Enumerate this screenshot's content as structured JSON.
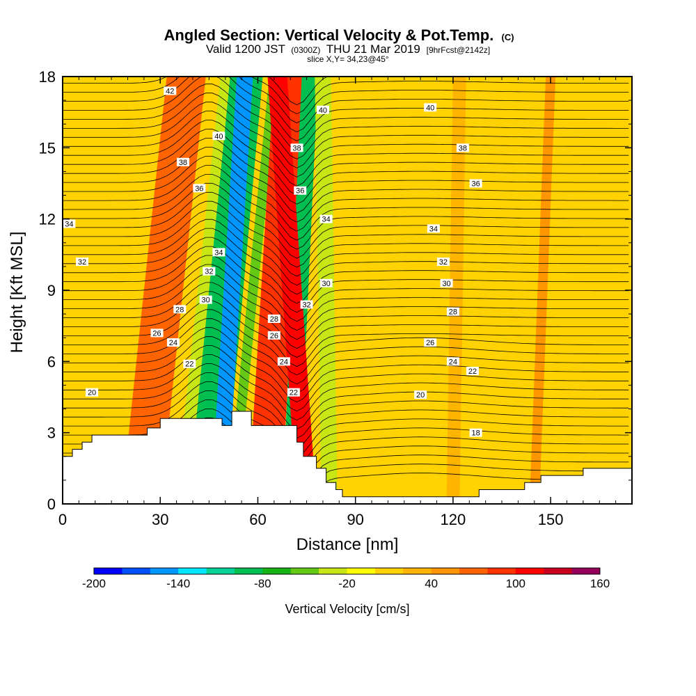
{
  "chart_data": {
    "type": "contour",
    "title": "Angled Section: Vertical Velocity & Pot.Temp.",
    "title_unit": "(C)",
    "subtitle_main": "Valid 1200 JST",
    "subtitle_utc": "(0300Z)",
    "subtitle_date": "THU 21 Mar 2019",
    "subtitle_fcst": "[9hrFcst@2142z]",
    "subtitle_slice": "slice X,Y= 34,23@45°",
    "xlabel": "Distance [nm]",
    "ylabel": "Height [Kft MSL]",
    "xlim": [
      0,
      175
    ],
    "ylim": [
      0,
      18
    ],
    "x_ticks": [
      0,
      30,
      60,
      90,
      120,
      150
    ],
    "y_ticks": [
      0,
      3,
      6,
      9,
      12,
      15,
      18
    ],
    "colorbar": {
      "label": "Vertical Velocity [cm/s]",
      "range": [
        -200,
        160
      ],
      "step": 20,
      "tick_values": [
        -200,
        -140,
        -80,
        -20,
        40,
        100,
        160
      ],
      "colors": [
        "#0000ff",
        "#0050ff",
        "#0096ff",
        "#00e6ff",
        "#00d296",
        "#00be50",
        "#14b414",
        "#64c814",
        "#c8e614",
        "#ffff00",
        "#ffd200",
        "#ffb400",
        "#ff9600",
        "#ff6400",
        "#ff3200",
        "#ff0000",
        "#c8001e",
        "#96005a",
        "#640096"
      ]
    },
    "vertical_velocity_bands": [
      {
        "center_bottom": 24,
        "center_top": 38,
        "width": 12,
        "value": 60
      },
      {
        "center_bottom": 38,
        "center_top": 52,
        "width": 7,
        "value": -40
      },
      {
        "center_bottom": 42,
        "center_top": 55,
        "width": 7,
        "value": -100
      },
      {
        "center_bottom": 46,
        "center_top": 58,
        "width": 7,
        "value": -100
      },
      {
        "center_bottom": 48,
        "center_top": 56,
        "width": 5,
        "value": -150
      },
      {
        "center_bottom": 52,
        "center_top": 65,
        "width": 3,
        "value": -50
      },
      {
        "center_bottom": 62,
        "center_top": 70,
        "width": 10,
        "value": 80
      },
      {
        "center_bottom": 70,
        "center_top": 76,
        "width": 5,
        "value": -90
      },
      {
        "center_bottom": 75,
        "center_top": 66,
        "width": 6,
        "value": 100
      },
      {
        "center_bottom": 82,
        "center_top": 80,
        "width": 5,
        "value": -30
      },
      {
        "center_bottom": 120,
        "center_top": 122,
        "width": 4,
        "value": 30
      },
      {
        "center_bottom": 145,
        "center_top": 150,
        "width": 3,
        "value": 40
      }
    ],
    "terrain_profile": [
      [
        0,
        2.0
      ],
      [
        3,
        2.0
      ],
      [
        3,
        2.3
      ],
      [
        6,
        2.3
      ],
      [
        6,
        2.6
      ],
      [
        9,
        2.6
      ],
      [
        9,
        2.9
      ],
      [
        14,
        2.9
      ],
      [
        14,
        2.9
      ],
      [
        20,
        2.9
      ],
      [
        20,
        2.9
      ],
      [
        26,
        2.9
      ],
      [
        26,
        3.2
      ],
      [
        30,
        3.2
      ],
      [
        30,
        3.6
      ],
      [
        36,
        3.6
      ],
      [
        36,
        3.6
      ],
      [
        49,
        3.6
      ],
      [
        49,
        3.3
      ],
      [
        52,
        3.3
      ],
      [
        52,
        3.9
      ],
      [
        58,
        3.9
      ],
      [
        58,
        3.3
      ],
      [
        64,
        3.3
      ],
      [
        64,
        3.3
      ],
      [
        72,
        3.3
      ],
      [
        72,
        2.6
      ],
      [
        74,
        2.6
      ],
      [
        74,
        2.0
      ],
      [
        78,
        2.0
      ],
      [
        78,
        1.5
      ],
      [
        81,
        1.5
      ],
      [
        81,
        0.9
      ],
      [
        84,
        0.9
      ],
      [
        84,
        0.6
      ],
      [
        86,
        0.6
      ],
      [
        86,
        0.3
      ],
      [
        90,
        0.3
      ],
      [
        90,
        0.3
      ],
      [
        128,
        0.3
      ],
      [
        128,
        0.6
      ],
      [
        142,
        0.6
      ],
      [
        142,
        0.9
      ],
      [
        147,
        0.9
      ],
      [
        147,
        1.2
      ],
      [
        160,
        1.2
      ],
      [
        160,
        1.5
      ],
      [
        175,
        1.5
      ]
    ],
    "isentrope_labels": [
      {
        "x": 33,
        "y": 17.4,
        "text": "42"
      },
      {
        "x": 48,
        "y": 15.5,
        "text": "40"
      },
      {
        "x": 80,
        "y": 16.6,
        "text": "40"
      },
      {
        "x": 113,
        "y": 16.7,
        "text": "40"
      },
      {
        "x": 37,
        "y": 14.4,
        "text": "38"
      },
      {
        "x": 72,
        "y": 15.0,
        "text": "38"
      },
      {
        "x": 123,
        "y": 15.0,
        "text": "38"
      },
      {
        "x": 42,
        "y": 13.3,
        "text": "36"
      },
      {
        "x": 73,
        "y": 13.2,
        "text": "36"
      },
      {
        "x": 127,
        "y": 13.5,
        "text": "36"
      },
      {
        "x": 2,
        "y": 11.8,
        "text": "34"
      },
      {
        "x": 48,
        "y": 10.6,
        "text": "34"
      },
      {
        "x": 81,
        "y": 12.0,
        "text": "34"
      },
      {
        "x": 114,
        "y": 11.6,
        "text": "34"
      },
      {
        "x": 6,
        "y": 10.2,
        "text": "32"
      },
      {
        "x": 45,
        "y": 9.8,
        "text": "32"
      },
      {
        "x": 75,
        "y": 8.4,
        "text": "32"
      },
      {
        "x": 117,
        "y": 10.2,
        "text": "32"
      },
      {
        "x": 44,
        "y": 8.6,
        "text": "30"
      },
      {
        "x": 81,
        "y": 9.3,
        "text": "30"
      },
      {
        "x": 118,
        "y": 9.3,
        "text": "30"
      },
      {
        "x": 36,
        "y": 8.2,
        "text": "28"
      },
      {
        "x": 65,
        "y": 7.8,
        "text": "28"
      },
      {
        "x": 120,
        "y": 8.1,
        "text": "28"
      },
      {
        "x": 29,
        "y": 7.2,
        "text": "26"
      },
      {
        "x": 65,
        "y": 7.1,
        "text": "26"
      },
      {
        "x": 113,
        "y": 6.8,
        "text": "26"
      },
      {
        "x": 34,
        "y": 6.8,
        "text": "24"
      },
      {
        "x": 68,
        "y": 6.0,
        "text": "24"
      },
      {
        "x": 120,
        "y": 6.0,
        "text": "24"
      },
      {
        "x": 39,
        "y": 5.9,
        "text": "22"
      },
      {
        "x": 71,
        "y": 4.7,
        "text": "22"
      },
      {
        "x": 126,
        "y": 5.6,
        "text": "22"
      },
      {
        "x": 9,
        "y": 4.7,
        "text": "20"
      },
      {
        "x": 110,
        "y": 4.6,
        "text": "20"
      },
      {
        "x": 127,
        "y": 3.0,
        "text": "18"
      }
    ]
  }
}
